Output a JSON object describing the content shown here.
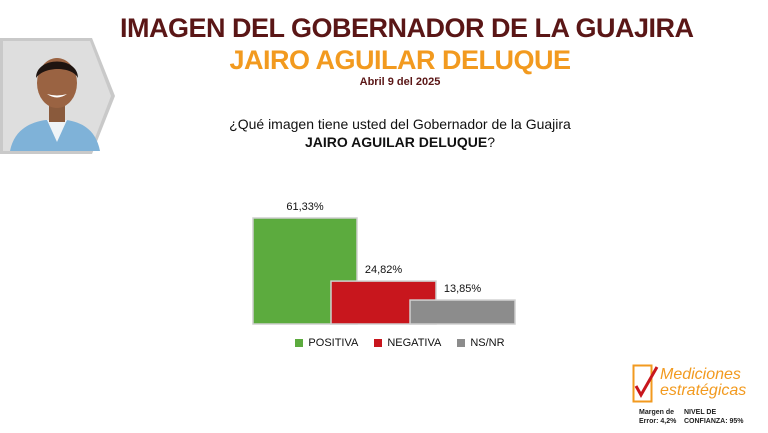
{
  "header": {
    "title_line1": "IMAGEN DEL GOBERNADOR DE LA GUAJIRA",
    "title_line2": "JAIRO AGUILAR DELUQUE",
    "date": "Abril 9 del 2025"
  },
  "question": {
    "prefix": "¿Qué imagen tiene usted del Gobernador de la Guajira",
    "name": "JAIRO AGUILAR DELUQUE",
    "suffix": "?"
  },
  "chart_data": {
    "type": "bar",
    "categories": [
      "POSITIVA",
      "NEGATIVA",
      "NS/NR"
    ],
    "values": [
      61.33,
      24.82,
      13.85
    ],
    "labels": [
      "61,33%",
      "24,82%",
      "13,85%"
    ],
    "colors": [
      "#5cab3e",
      "#c8161d",
      "#8c8c8c"
    ],
    "title": "",
    "xlabel": "",
    "ylabel": "",
    "ylim": [
      0,
      61.33
    ],
    "grid": false,
    "legend_position": "bottom",
    "bars_overlap": true
  },
  "logo": {
    "line1": "Mediciones",
    "line2": "estratégicas"
  },
  "footer": {
    "margin_label": "Margen de Error: 4,2%",
    "confidence_label": "NIVEL DE CONFIANZA: 95%"
  },
  "colors": {
    "title_dark": "#5a1616",
    "title_accent": "#f29a1f"
  }
}
